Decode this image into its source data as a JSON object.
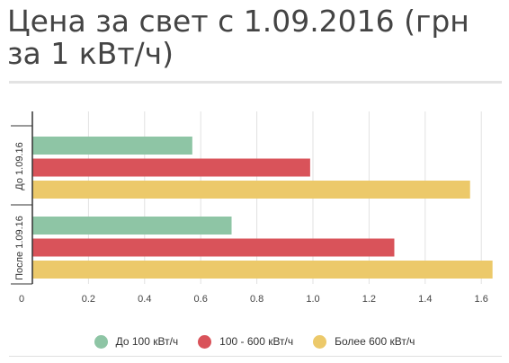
{
  "header": {
    "title": "Цена за свет с 1.09.2016 (грн за 1 кВт/ч)"
  },
  "chart_data": {
    "type": "bar",
    "orientation": "horizontal",
    "categories": [
      "До 1.09.16",
      "После 1.09.16"
    ],
    "series": [
      {
        "name": "До 100 кВт/ч",
        "values": [
          0.57,
          0.71
        ],
        "color": "#8ec5a5"
      },
      {
        "name": "100 - 600 кВт/ч",
        "values": [
          0.99,
          1.29
        ],
        "color": "#d9535a"
      },
      {
        "name": "Более 600 кВт/ч",
        "values": [
          1.56,
          1.64
        ],
        "color": "#ecc96a"
      }
    ],
    "xlim": [
      0,
      1.65
    ],
    "x_ticks": [
      "0",
      "0.2",
      "0.4",
      "0.6",
      "0.8",
      "1.0",
      "1.2",
      "1.4",
      "1.6"
    ],
    "grid": true,
    "legend": "bottom"
  }
}
